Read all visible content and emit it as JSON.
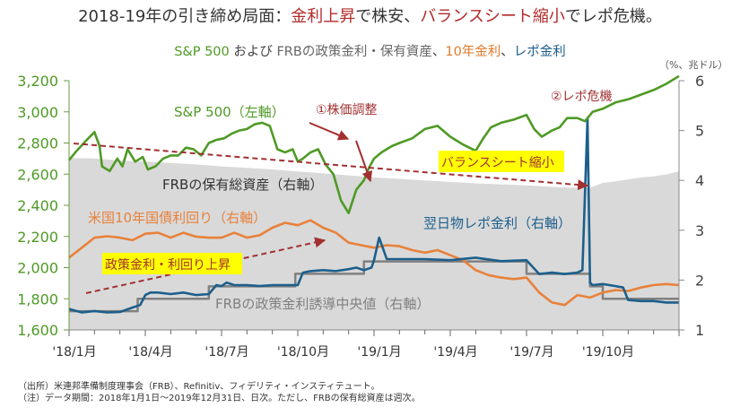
{
  "title": {
    "part1": "2018-19年の引き締め局面：",
    "part2": "金利上昇",
    "part3": "で株安、",
    "part4": "バランスシート縮小",
    "part5": "でレポ危機。"
  },
  "subtitle": {
    "sp": "S&P 500",
    "and": " および ",
    "frb": "FRBの政策金利・保有資産",
    "sep1": "、",
    "y10": "10年金利",
    "sep2": "、",
    "repo": "レポ金利"
  },
  "unit_label": "（%、兆ドル）",
  "colors": {
    "sp500": "#4e9a25",
    "treasury10y": "#e8813a",
    "repo": "#1c5f8c",
    "fed_funds": "#808080",
    "balance_sheet": "#d9d9d9",
    "annotation": "#a33030",
    "highlight": "#ffff00"
  },
  "annotations": {
    "sp_label": "S&P 500（左軸）",
    "bs_label": "FRBの保有総資産（右軸）",
    "y10_label": "米国10年国債利回り（右軸）",
    "repo_label": "翌日物レポ金利（右軸）",
    "ff_label": "FRBの政策金利誘導中央値（右軸）",
    "event1": "①株価調整",
    "event2": "②レポ危機",
    "bs_shrink": "バランスシート縮小",
    "rate_rise": "政策金利・利回り上昇"
  },
  "notes": {
    "source": "（出所）米連邦準備制度理事会（FRB）、Refinitiv、フィデリティ・インスティテュート。",
    "period": "（注）データ期間：2018年1月1日～2019年12月31日、日次。ただし、FRBの保有総資産は週次。"
  },
  "chart_data": {
    "type": "line",
    "title": "S&P 500 および FRBの政策金利・保有資産、10年金利、レポ金利",
    "x_range": [
      "2018-01",
      "2019-12"
    ],
    "x_ticks": [
      "'18/1月",
      "'18/4月",
      "'18/7月",
      "'18/10月",
      "'19/1月",
      "'19/4月",
      "'19/7月",
      "'19/10月"
    ],
    "x_tick_months": [
      0,
      3,
      6,
      9,
      12,
      15,
      18,
      21
    ],
    "left_axis": {
      "label": "S&P 500",
      "ylim": [
        1600,
        3200
      ],
      "ticks": [
        "1,600",
        "1,800",
        "2,000",
        "2,200",
        "2,400",
        "2,600",
        "2,800",
        "3,000",
        "3,200"
      ],
      "tick_values": [
        1600,
        1800,
        2000,
        2200,
        2400,
        2600,
        2800,
        3000,
        3200
      ]
    },
    "right_axis": {
      "label": "（%、兆ドル）",
      "ylim": [
        1,
        6
      ],
      "ticks": [
        "1",
        "2",
        "3",
        "4",
        "5",
        "6"
      ],
      "tick_values": [
        1,
        2,
        3,
        4,
        5,
        6
      ]
    },
    "series": [
      {
        "name": "S&P 500（左軸）",
        "axis": "left",
        "kind": "line",
        "x": [
          0,
          0.3,
          0.7,
          1.0,
          1.2,
          1.3,
          1.6,
          1.9,
          2.1,
          2.3,
          2.6,
          2.9,
          3.1,
          3.4,
          3.7,
          4.0,
          4.3,
          4.6,
          4.9,
          5.2,
          5.5,
          5.8,
          6.1,
          6.4,
          6.7,
          7.0,
          7.3,
          7.6,
          7.9,
          8.2,
          8.5,
          8.8,
          9.0,
          9.2,
          9.5,
          9.8,
          10.1,
          10.4,
          10.7,
          11.0,
          11.3,
          11.6,
          11.8,
          12.0,
          12.3,
          12.7,
          13.0,
          13.5,
          14.0,
          14.5,
          15.0,
          15.5,
          16.0,
          16.3,
          16.6,
          17.0,
          17.5,
          18.0,
          18.3,
          18.6,
          19.0,
          19.3,
          19.6,
          20.0,
          20.3,
          20.6,
          21.0,
          21.5,
          22.0,
          22.5,
          23.0,
          23.5,
          24.0
        ],
        "values": [
          2690,
          2750,
          2820,
          2870,
          2780,
          2650,
          2620,
          2700,
          2650,
          2760,
          2680,
          2710,
          2630,
          2650,
          2700,
          2720,
          2720,
          2770,
          2760,
          2720,
          2800,
          2820,
          2830,
          2860,
          2880,
          2890,
          2920,
          2930,
          2910,
          2760,
          2740,
          2760,
          2680,
          2700,
          2740,
          2760,
          2660,
          2600,
          2430,
          2350,
          2500,
          2560,
          2640,
          2700,
          2740,
          2780,
          2800,
          2830,
          2890,
          2910,
          2840,
          2790,
          2750,
          2830,
          2900,
          2930,
          2950,
          2980,
          2890,
          2840,
          2880,
          2900,
          2960,
          2960,
          2940,
          3000,
          3020,
          3060,
          3080,
          3110,
          3140,
          3180,
          3230
        ]
      },
      {
        "name": "FRBの保有総資産（右軸）",
        "axis": "right",
        "kind": "area",
        "x": [
          0,
          1,
          2,
          3,
          4,
          5,
          6,
          7,
          8,
          9,
          10,
          11,
          12,
          13,
          14,
          15,
          16,
          17,
          18,
          19,
          20,
          20.5,
          21,
          21.5,
          22,
          22.5,
          23,
          23.5,
          24
        ],
        "values": [
          4.45,
          4.44,
          4.4,
          4.38,
          4.35,
          4.32,
          4.28,
          4.25,
          4.22,
          4.18,
          4.14,
          4.1,
          4.06,
          4.03,
          4.0,
          3.97,
          3.94,
          3.92,
          3.9,
          3.87,
          3.85,
          3.85,
          3.95,
          3.98,
          4.02,
          4.06,
          4.08,
          4.12,
          4.18
        ]
      },
      {
        "name": "米国10年国債利回り（右軸）",
        "axis": "right",
        "kind": "line",
        "x": [
          0,
          0.5,
          1.0,
          1.5,
          2.0,
          2.5,
          3.0,
          3.5,
          4.0,
          4.5,
          5.0,
          5.5,
          6.0,
          6.5,
          7.0,
          7.5,
          8.0,
          8.5,
          9.0,
          9.5,
          10.0,
          10.5,
          11.0,
          11.5,
          12.0,
          12.5,
          13.0,
          13.5,
          14.0,
          14.5,
          15.0,
          15.5,
          16.0,
          16.5,
          17.0,
          17.5,
          18.0,
          18.5,
          19.0,
          19.5,
          20.0,
          20.5,
          21.0,
          21.5,
          22.0,
          22.5,
          23.0,
          23.5,
          24.0
        ],
        "values": [
          2.45,
          2.65,
          2.85,
          2.88,
          2.85,
          2.8,
          2.93,
          2.95,
          2.85,
          2.95,
          2.87,
          2.85,
          2.85,
          2.95,
          2.85,
          2.9,
          3.05,
          3.15,
          3.1,
          3.2,
          3.05,
          2.95,
          2.75,
          2.7,
          2.65,
          2.7,
          2.68,
          2.6,
          2.55,
          2.6,
          2.5,
          2.4,
          2.2,
          2.1,
          2.05,
          2.02,
          2.05,
          1.75,
          1.55,
          1.5,
          1.7,
          1.65,
          1.75,
          1.8,
          1.78,
          1.85,
          1.9,
          1.92,
          1.9
        ]
      },
      {
        "name": "翌日物レポ金利（右軸）",
        "axis": "right",
        "kind": "line",
        "x": [
          0,
          0.5,
          1.0,
          1.5,
          2.0,
          2.5,
          2.8,
          3.0,
          3.2,
          3.5,
          4.0,
          4.5,
          5.0,
          5.5,
          5.8,
          6.0,
          6.2,
          6.5,
          7.0,
          7.5,
          8.0,
          8.5,
          9.0,
          9.2,
          9.5,
          10.0,
          10.5,
          11.0,
          11.3,
          11.6,
          11.9,
          12.0,
          12.2,
          12.5,
          13.0,
          14.0,
          15.0,
          16.0,
          17.0,
          18.0,
          18.5,
          19.0,
          19.5,
          20.0,
          20.2,
          20.4,
          20.5,
          20.6,
          21.0,
          21.5,
          21.8,
          22.0,
          22.5,
          23.0,
          23.5,
          24.0
        ],
        "values": [
          1.42,
          1.35,
          1.38,
          1.35,
          1.36,
          1.45,
          1.5,
          1.7,
          1.75,
          1.75,
          1.72,
          1.75,
          1.7,
          1.72,
          1.9,
          1.88,
          1.95,
          1.9,
          1.9,
          1.88,
          1.9,
          1.9,
          1.9,
          2.15,
          2.18,
          2.2,
          2.18,
          2.22,
          2.25,
          2.2,
          2.25,
          2.4,
          2.85,
          2.42,
          2.42,
          2.42,
          2.4,
          2.45,
          2.38,
          2.4,
          2.12,
          2.15,
          2.12,
          2.15,
          2.2,
          5.25,
          1.95,
          1.9,
          1.92,
          1.88,
          1.85,
          1.6,
          1.58,
          1.58,
          1.55,
          1.55
        ]
      },
      {
        "name": "FRBの政策金利誘導中央値（右軸）",
        "axis": "right",
        "kind": "step",
        "x": [
          0,
          2.7,
          2.7,
          5.5,
          5.5,
          8.9,
          8.9,
          11.6,
          11.6,
          18.0,
          18.0,
          20.5,
          20.5,
          21.0,
          21.0,
          24.0
        ],
        "values": [
          1.375,
          1.375,
          1.625,
          1.625,
          1.875,
          1.875,
          2.125,
          2.125,
          2.375,
          2.375,
          2.125,
          2.125,
          1.875,
          1.875,
          1.625,
          1.625
        ]
      }
    ]
  }
}
